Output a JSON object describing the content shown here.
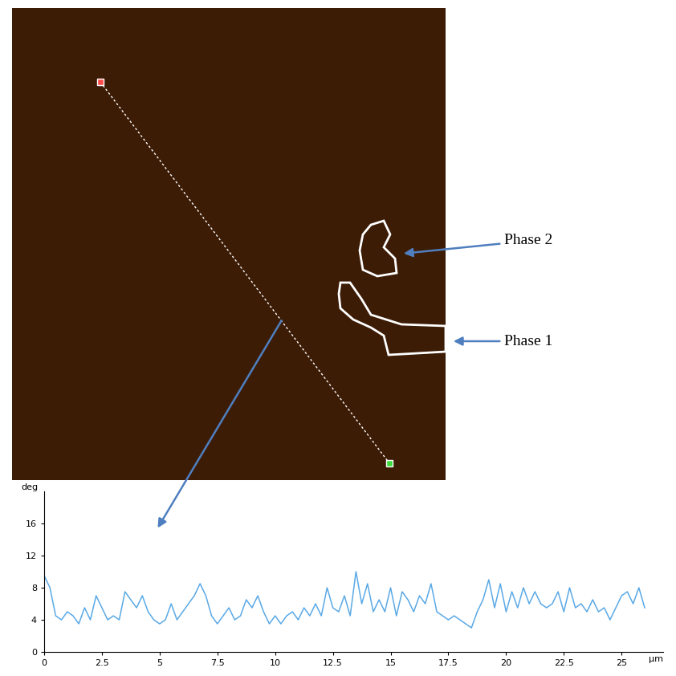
{
  "chart_data": {
    "type": "line",
    "x": [
      0,
      0.25,
      0.5,
      0.75,
      1,
      1.25,
      1.5,
      1.75,
      2,
      2.25,
      2.5,
      2.75,
      3,
      3.25,
      3.5,
      3.75,
      4,
      4.25,
      4.5,
      4.75,
      5,
      5.25,
      5.5,
      5.75,
      6,
      6.25,
      6.5,
      6.75,
      7,
      7.25,
      7.5,
      7.75,
      8,
      8.25,
      8.5,
      8.75,
      9,
      9.25,
      9.5,
      9.75,
      10,
      10.25,
      10.5,
      10.75,
      11,
      11.25,
      11.5,
      11.75,
      12,
      12.25,
      12.5,
      12.75,
      13,
      13.25,
      13.5,
      13.75,
      14,
      14.25,
      14.5,
      14.75,
      15,
      15.25,
      15.5,
      15.75,
      16,
      16.25,
      16.5,
      16.75,
      17,
      17.25,
      17.5,
      17.75,
      18,
      18.25,
      18.5,
      18.75,
      19,
      19.25,
      19.5,
      19.75,
      20,
      20.25,
      20.5,
      20.75,
      21,
      21.25,
      21.5,
      21.75,
      22,
      22.25,
      22.5,
      22.75,
      23,
      23.25,
      23.5,
      23.75,
      24,
      24.25,
      24.5,
      24.75,
      25,
      25.25,
      25.5,
      25.75,
      26
    ],
    "values": [
      9.5,
      8,
      4.5,
      4,
      5,
      4.5,
      3.5,
      5.5,
      4,
      7,
      5.5,
      4,
      4.5,
      4,
      7.5,
      6.5,
      5.5,
      7,
      5,
      4,
      3.5,
      4,
      6,
      4,
      5,
      6,
      7,
      8.5,
      7,
      4.5,
      3.5,
      4.5,
      5.5,
      4,
      4.5,
      6.5,
      5.5,
      7,
      5,
      3.5,
      4.5,
      3.5,
      4.5,
      5,
      4,
      5.5,
      4.5,
      6,
      4.5,
      8,
      5.5,
      5,
      7,
      4.5,
      10,
      6,
      8.5,
      5,
      6.5,
      5,
      8,
      4.5,
      7.5,
      6.5,
      5,
      7,
      6,
      8.5,
      5,
      4.5,
      4,
      4.5,
      4,
      3.5,
      3,
      5,
      6.5,
      9,
      5.5,
      8.5,
      5,
      7.5,
      5.5,
      8,
      6,
      7.5,
      6,
      5.5,
      6,
      7.5,
      5,
      8,
      5.5,
      6,
      5,
      6.5,
      5,
      5.5,
      4,
      5.5,
      7,
      7.5,
      6,
      8,
      5.5
    ],
    "color": "#5aa9e6",
    "xlabel": "µm",
    "ylabel": "deg",
    "xlim": [
      0,
      26.8
    ],
    "ylim": [
      0,
      20
    ],
    "xticks": [
      0,
      2.5,
      5,
      7.5,
      10,
      12.5,
      15,
      17.5,
      20,
      22.5,
      25
    ],
    "yticks": [
      0,
      4,
      8,
      12,
      16
    ],
    "annotations": [
      "Phase 2",
      "Phase 1"
    ]
  }
}
